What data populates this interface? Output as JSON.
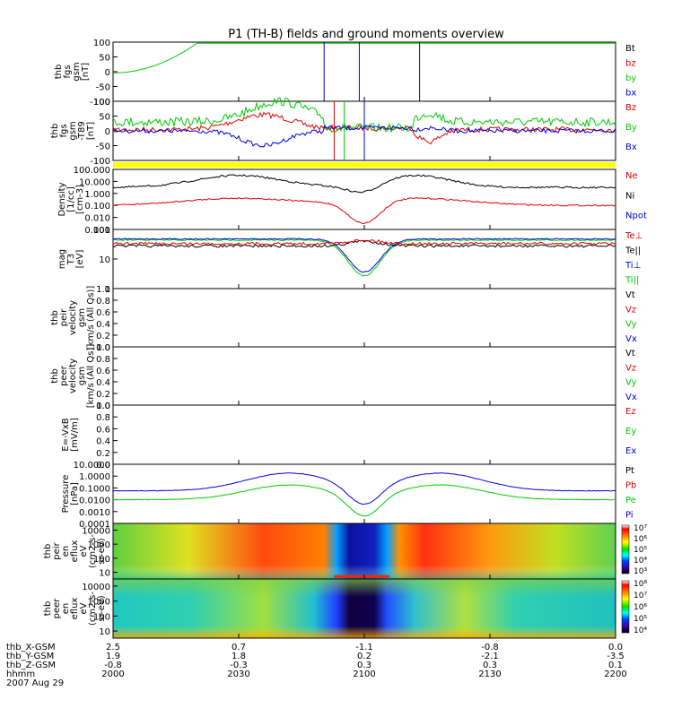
{
  "title": "P1 (TH-B) fields and ground moments overview",
  "colors": {
    "black": "#000000",
    "red": "#e00000",
    "green": "#00cc00",
    "blue": "#0000dd",
    "yellow": "#ffff00"
  },
  "chart_data": {
    "type": "line",
    "x_ticks": [
      "2000",
      "2030",
      "2100",
      "2130",
      "2200"
    ],
    "x_range_hhmm": [
      "2000",
      "2200"
    ],
    "footer": {
      "rows": [
        {
          "label": "thb_X-GSM",
          "values": [
            "2.5",
            "0.7",
            "-1.1",
            "-0.8",
            "0.0"
          ]
        },
        {
          "label": "thb_Y-GSM",
          "values": [
            "1.9",
            "1.8",
            "0.2",
            "-2.1",
            "-3.5"
          ]
        },
        {
          "label": "thb_Z-GSM",
          "values": [
            "-0.8",
            "-0.3",
            "0.3",
            "0.3",
            "0.1"
          ]
        },
        {
          "label": "hhmm",
          "values": [
            "2000",
            "2030",
            "2100",
            "2130",
            "2200"
          ]
        }
      ],
      "date": "2007 Aug 29"
    },
    "panels": [
      {
        "id": "fgs",
        "ylabel": [
          "thb",
          "fgs",
          "gsm",
          "[nT]"
        ],
        "yticks": [
          "100",
          "50",
          "0",
          "-50",
          "-100"
        ],
        "ylim": [
          -100,
          100
        ],
        "legend": [
          {
            "text": "Bt",
            "color": "black"
          },
          {
            "text": "bz",
            "color": "red"
          },
          {
            "text": "by",
            "color": "green"
          },
          {
            "text": "bx",
            "color": "blue"
          }
        ]
      },
      {
        "id": "fgs_t89",
        "ylabel": [
          "thb",
          "fgs",
          "gsm",
          "-T89",
          "[nT]"
        ],
        "yticks": [
          "100",
          "50",
          "0",
          "-50",
          "-100"
        ],
        "ylim": [
          -100,
          100
        ],
        "legend": [
          {
            "text": "Bz",
            "color": "red"
          },
          {
            "text": "By",
            "color": "green"
          },
          {
            "text": "Bx",
            "color": "blue"
          }
        ]
      },
      {
        "id": "density",
        "ylabel": [
          "Density",
          "[1/cc]",
          "[cm-3]"
        ],
        "yticks": [
          "100.000",
          "10.000",
          "1.000",
          "0.100",
          "0.010",
          "0.001"
        ],
        "log": true,
        "ylim": [
          0.001,
          100
        ],
        "legend": [
          {
            "text": "Ne",
            "color": "red"
          },
          {
            "text": "Ni",
            "color": "black"
          },
          {
            "text": "Npot",
            "color": "blue"
          }
        ]
      },
      {
        "id": "temperature",
        "ylabel": [
          "mag",
          "T3",
          "[eV]"
        ],
        "yticks": [
          "100",
          "10",
          "1"
        ],
        "log": true,
        "ylim": [
          1,
          1000
        ],
        "legend": [
          {
            "text": "Te⊥",
            "color": "red"
          },
          {
            "text": "Te||",
            "color": "black"
          },
          {
            "text": "Ti⊥",
            "color": "blue"
          },
          {
            "text": "Ti||",
            "color": "green"
          }
        ]
      },
      {
        "id": "peir_velocity",
        "ylabel": [
          "thb",
          "peir",
          "velocity",
          "gsm",
          "[km/s (All Qs)]"
        ],
        "yticks": [
          "1.0",
          "0.8",
          "0.6",
          "0.4",
          "0.2",
          "0.0"
        ],
        "ylim": [
          0,
          1
        ],
        "legend": [
          {
            "text": "Vt",
            "color": "black"
          },
          {
            "text": "Vz",
            "color": "red"
          },
          {
            "text": "Vy",
            "color": "green"
          },
          {
            "text": "Vx",
            "color": "blue"
          }
        ]
      },
      {
        "id": "peer_velocity",
        "ylabel": [
          "thb",
          "peer",
          "velocity",
          "gsm",
          "[km/s (All Qs)]"
        ],
        "yticks": [
          "1.0",
          "0.8",
          "0.6",
          "0.4",
          "0.2",
          "0.0"
        ],
        "ylim": [
          0,
          1
        ],
        "legend": [
          {
            "text": "Vt",
            "color": "black"
          },
          {
            "text": "Vz",
            "color": "red"
          },
          {
            "text": "Vy",
            "color": "green"
          },
          {
            "text": "Vx",
            "color": "blue"
          }
        ]
      },
      {
        "id": "efield",
        "ylabel": [
          "E=-VxB",
          "[mV/m]"
        ],
        "yticks": [
          "1.0",
          "0.8",
          "0.6",
          "0.4",
          "0.2",
          "0.0"
        ],
        "ylim": [
          0,
          1
        ],
        "legend": [
          {
            "text": "Ez",
            "color": "red"
          },
          {
            "text": "Ey",
            "color": "green"
          },
          {
            "text": "Ex",
            "color": "blue"
          }
        ]
      },
      {
        "id": "pressure",
        "ylabel": [
          "Pressure",
          "[nPa]"
        ],
        "yticks": [
          "10.0000",
          "1.0000",
          "0.1000",
          "0.0100",
          "0.0010",
          "0.0001"
        ],
        "log": true,
        "ylim": [
          0.0001,
          10
        ],
        "legend": [
          {
            "text": "Pt",
            "color": "black"
          },
          {
            "text": "Pb",
            "color": "red"
          },
          {
            "text": "Pe",
            "color": "green"
          },
          {
            "text": "Pi",
            "color": "blue"
          }
        ]
      },
      {
        "id": "peir_spec",
        "ylabel": [
          "thb",
          "peir",
          "en",
          "eflux",
          "eV",
          "(cm2-s-",
          "sr-eV)"
        ],
        "yticks": [
          "10000",
          "1000",
          "100",
          "10"
        ],
        "colorbar": [
          "10⁷",
          "10⁶",
          "10⁵",
          "10⁴",
          "10³"
        ]
      },
      {
        "id": "peer_spec",
        "ylabel": [
          "thb",
          "peer",
          "en",
          "eflux",
          "eV",
          "(cm2-s-",
          "sr-eV)"
        ],
        "yticks": [
          "10000",
          "1000",
          "100",
          "10"
        ],
        "colorbar": [
          "10⁸",
          "10⁷",
          "10⁶",
          "10⁵",
          "10⁴"
        ]
      }
    ]
  }
}
